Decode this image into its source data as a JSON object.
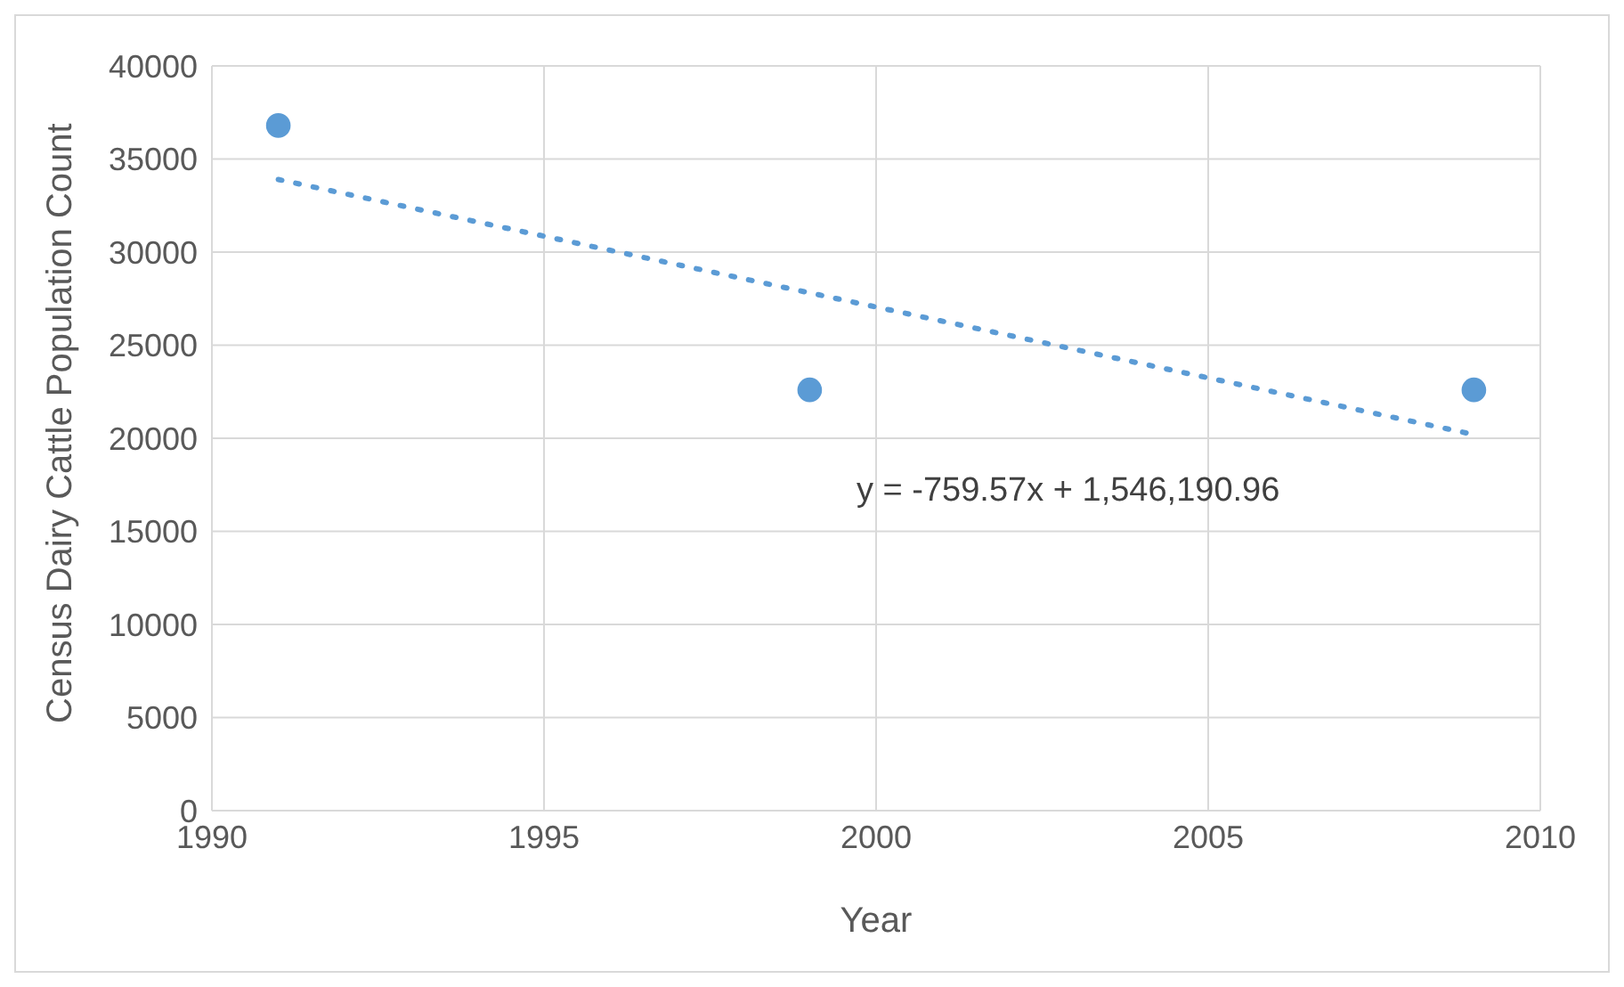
{
  "chart_data": {
    "type": "scatter",
    "xlabel": "Year",
    "ylabel": "Census Dairy Cattle Population Count",
    "x": [
      1991,
      1999,
      2009
    ],
    "series": [
      {
        "color": "#5b9bd5",
        "values": [
          36800,
          22600,
          22600
        ],
        "marker": "circle"
      },
      {
        "type": "line",
        "color": "#5b9bd5",
        "x": [
          1991,
          2009
        ],
        "values": [
          33900,
          20200
        ],
        "line_style": "dotted",
        "marker": "none"
      }
    ],
    "xlim": [
      1990,
      2010
    ],
    "xticks": [
      1990,
      1995,
      2000,
      2005,
      2010
    ],
    "ylim": [
      0,
      40000
    ],
    "yticks": [
      0,
      5000,
      10000,
      15000,
      20000,
      25000,
      30000,
      35000,
      40000
    ],
    "grid": true,
    "annotations": [
      "y = -759.57x + 1,546,190.96"
    ]
  }
}
